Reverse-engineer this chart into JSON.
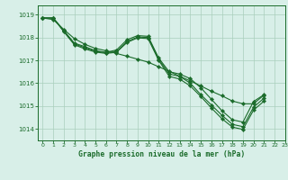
{
  "bg_color": "#d8efe8",
  "grid_color": "#aacfbc",
  "line_color": "#1a6b2a",
  "title": "Graphe pression niveau de la mer (hPa)",
  "xlim": [
    -0.5,
    23
  ],
  "ylim": [
    1013.5,
    1019.4
  ],
  "yticks": [
    1014,
    1015,
    1016,
    1017,
    1018,
    1019
  ],
  "xticks": [
    0,
    1,
    2,
    3,
    4,
    5,
    6,
    7,
    8,
    9,
    10,
    11,
    12,
    13,
    14,
    15,
    16,
    17,
    18,
    19,
    20,
    21,
    22,
    23
  ],
  "line1_x": [
    0,
    1,
    2,
    3,
    4,
    5,
    6,
    7,
    8,
    9,
    10,
    11,
    12,
    13,
    14,
    15,
    16,
    17,
    18,
    19,
    20,
    21
  ],
  "line1_y": [
    1018.85,
    1018.85,
    1018.3,
    1017.75,
    1017.6,
    1017.42,
    1017.35,
    1017.45,
    1017.9,
    1018.08,
    1018.05,
    1017.1,
    1016.5,
    1016.4,
    1016.2,
    1015.8,
    1015.3,
    1014.8,
    1014.4,
    1014.3,
    1015.2,
    1015.5
  ],
  "line2_x": [
    0,
    1,
    2,
    3,
    4,
    5,
    6,
    7,
    8,
    9,
    10,
    11,
    12,
    13,
    14,
    15,
    16,
    17,
    18,
    19,
    20,
    21
  ],
  "line2_y": [
    1018.85,
    1018.85,
    1018.28,
    1017.72,
    1017.55,
    1017.4,
    1017.33,
    1017.38,
    1017.82,
    1018.02,
    1018.0,
    1017.05,
    1016.4,
    1016.3,
    1016.0,
    1015.5,
    1015.05,
    1014.6,
    1014.2,
    1014.1,
    1014.95,
    1015.35
  ],
  "line3_x": [
    0,
    1,
    2,
    3,
    4,
    5,
    6,
    7,
    8,
    9,
    10,
    11,
    12,
    13,
    14,
    15,
    16,
    17,
    18,
    19,
    20,
    21
  ],
  "line3_y": [
    1018.85,
    1018.85,
    1018.25,
    1017.68,
    1017.5,
    1017.36,
    1017.3,
    1017.35,
    1017.78,
    1017.98,
    1017.95,
    1017.0,
    1016.3,
    1016.18,
    1015.88,
    1015.42,
    1014.92,
    1014.45,
    1014.08,
    1013.98,
    1014.82,
    1015.22
  ],
  "line_diag_x": [
    0,
    1,
    2,
    3,
    4,
    5,
    6,
    7,
    8,
    9,
    10,
    11,
    12,
    13,
    14,
    15,
    16,
    17,
    18,
    19,
    20,
    21
  ],
  "line_diag_y": [
    1018.85,
    1018.78,
    1018.35,
    1017.95,
    1017.7,
    1017.52,
    1017.42,
    1017.3,
    1017.18,
    1017.05,
    1016.92,
    1016.72,
    1016.52,
    1016.3,
    1016.1,
    1015.88,
    1015.65,
    1015.45,
    1015.22,
    1015.1,
    1015.1,
    1015.48
  ]
}
